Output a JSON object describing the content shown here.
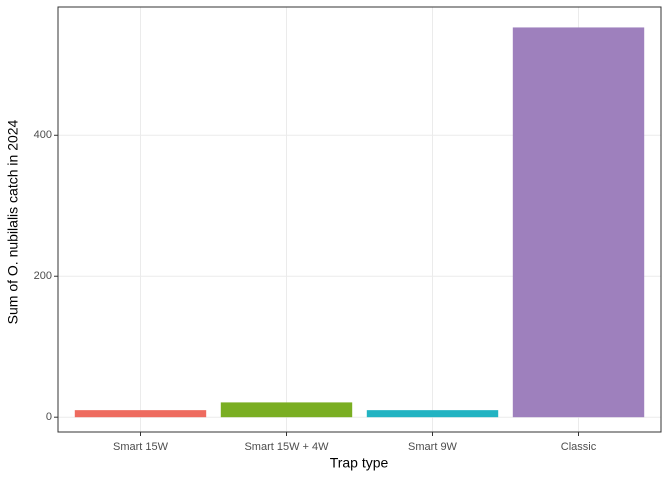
{
  "chart_data": {
    "type": "bar",
    "x_label": "Trap type",
    "y_label": "Sum of O. nubilalis catch in 2024",
    "categories": [
      "Smart 15W",
      "Smart 15W + 4W",
      "Smart 9W",
      "Classic"
    ],
    "values": [
      10,
      21,
      10,
      553
    ],
    "colors": [
      "#ee6b5f",
      "#7aae22",
      "#22b3c2",
      "#9e80bd"
    ],
    "ylim": [
      -21,
      582
    ],
    "yticks": [
      0,
      200,
      400
    ],
    "grid": true
  }
}
